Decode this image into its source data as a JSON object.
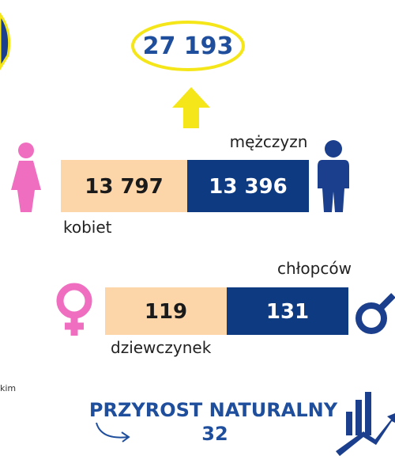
{
  "total": "27 193",
  "adults": {
    "men_label": "mężczyzn",
    "women_value": "13 797",
    "men_value": "13 396",
    "women_label": "kobiet"
  },
  "births": {
    "boys_label": "chłopców",
    "girls_value": "119",
    "boys_value": "131",
    "girls_label": "dziewczynek"
  },
  "side_note": "kim",
  "growth": {
    "title": "PRZYROST NATURALNY",
    "value": "32"
  }
}
